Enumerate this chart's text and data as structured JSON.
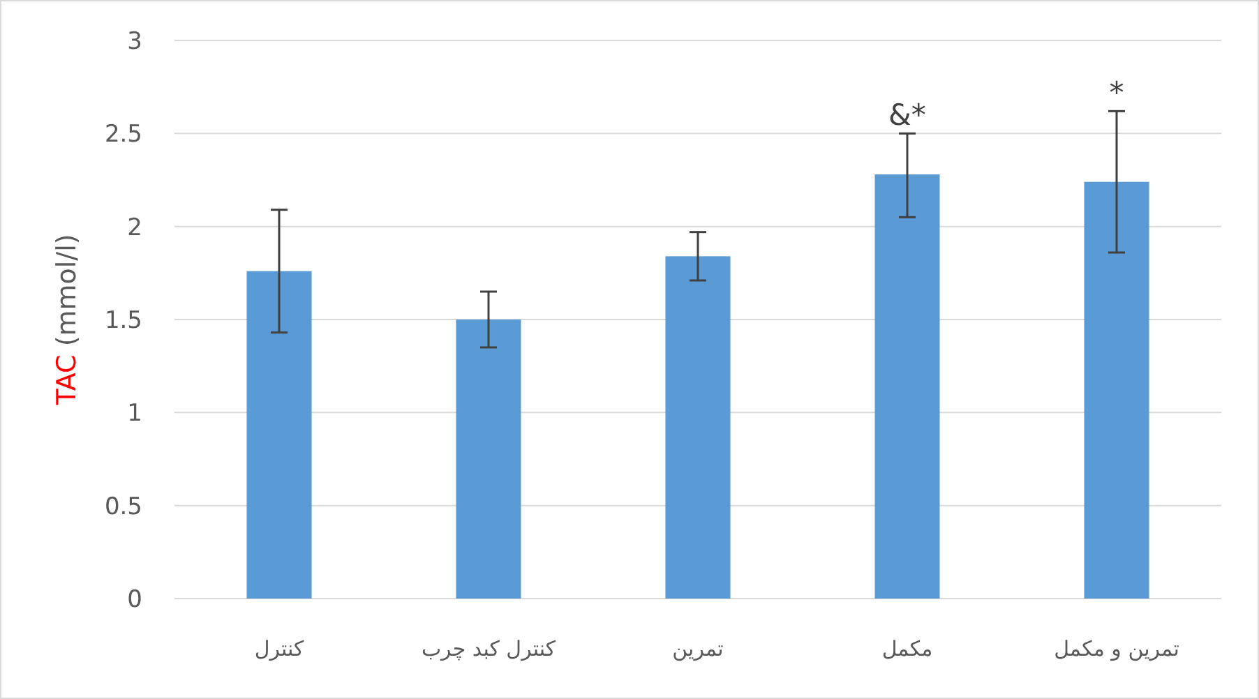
{
  "chart_data": {
    "type": "bar",
    "ylabel": "TAC (mmol/l)",
    "categories": [
      "کنترل",
      "کنترل کبد چرب",
      "تمرین",
      "مکمل",
      "تمرین و مکمل"
    ],
    "values": [
      1.76,
      1.5,
      1.84,
      2.28,
      2.24
    ],
    "errors": [
      [
        1.43,
        2.09
      ],
      [
        1.35,
        1.65
      ],
      [
        1.71,
        1.97
      ],
      [
        2.05,
        2.5
      ],
      [
        1.86,
        2.62
      ]
    ],
    "color": "#5b9bd5",
    "ylim": [
      0,
      3
    ],
    "yticks": [
      0,
      0.5,
      1,
      1.5,
      2,
      2.5,
      3
    ],
    "grid": "y",
    "annotations": [
      {
        "text": "&*",
        "x": "مکمل",
        "y": 2.5
      },
      {
        "text": "*",
        "x": "تمرین و مکمل",
        "y": 2.62
      }
    ]
  }
}
